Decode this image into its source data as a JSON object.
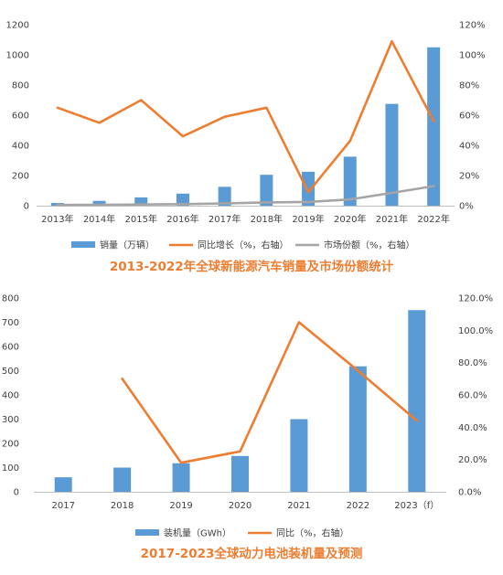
{
  "colors": {
    "bar": "#5B9BD5",
    "line": "#ED7D31",
    "share": "#A5A5A5",
    "axis_text": "#404040",
    "title": "#ED7D31"
  },
  "chart_data": [
    {
      "type": "bar",
      "title": "2013-2022年全球新能源汽车销量及市场份额统计",
      "categories": [
        "2013年",
        "2014年",
        "2015年",
        "2016年",
        "2017年",
        "2018年",
        "2019年",
        "2020年",
        "2021年",
        "2022年"
      ],
      "y_left_ticks": [
        "0",
        "200",
        "400",
        "600",
        "800",
        "1000",
        "1200"
      ],
      "y_right_ticks": [
        "0%",
        "20%",
        "40%",
        "60%",
        "80%",
        "100%",
        "120%"
      ],
      "ylim_left": [
        0,
        1200
      ],
      "ylim_right": [
        0,
        120
      ],
      "series": [
        {
          "name": "销量（万辆）",
          "kind": "bar",
          "axis": "left",
          "values": [
            18,
            32,
            55,
            80,
            125,
            205,
            225,
            325,
            675,
            1050
          ]
        },
        {
          "name": "同比增长（%，右轴）",
          "kind": "line",
          "axis": "right",
          "values": [
            65,
            55,
            70,
            46,
            59,
            65,
            9,
            43,
            109,
            56
          ]
        },
        {
          "name": "市场份额（%，右轴）",
          "kind": "line",
          "axis": "right",
          "values": [
            0.5,
            0.6,
            0.8,
            1.0,
            1.5,
            2.2,
            2.5,
            4.2,
            8.5,
            13.0
          ]
        }
      ],
      "legend": "bottom",
      "grid": false
    },
    {
      "type": "bar",
      "title": "2017-2023全球动力电池装机量及预测",
      "categories": [
        "2017",
        "2018",
        "2019",
        "2020",
        "2021",
        "2022",
        "2023（f）"
      ],
      "y_left_ticks": [
        "0",
        "100",
        "200",
        "300",
        "400",
        "500",
        "600",
        "700",
        "800"
      ],
      "y_right_ticks": [
        "0.0%",
        "20.0%",
        "40.0%",
        "60.0%",
        "80.0%",
        "100.0%",
        "120.0%"
      ],
      "ylim_left": [
        0,
        800
      ],
      "ylim_right": [
        0,
        120
      ],
      "series": [
        {
          "name": "装机量（GWh）",
          "kind": "bar",
          "axis": "left",
          "values": [
            60,
            100,
            118,
            148,
            300,
            518,
            750
          ]
        },
        {
          "name": "同比（%，右轴）",
          "kind": "line",
          "axis": "right",
          "values": [
            null,
            70,
            18,
            25,
            105,
            75,
            44
          ]
        }
      ],
      "legend": "bottom",
      "grid": false
    }
  ]
}
